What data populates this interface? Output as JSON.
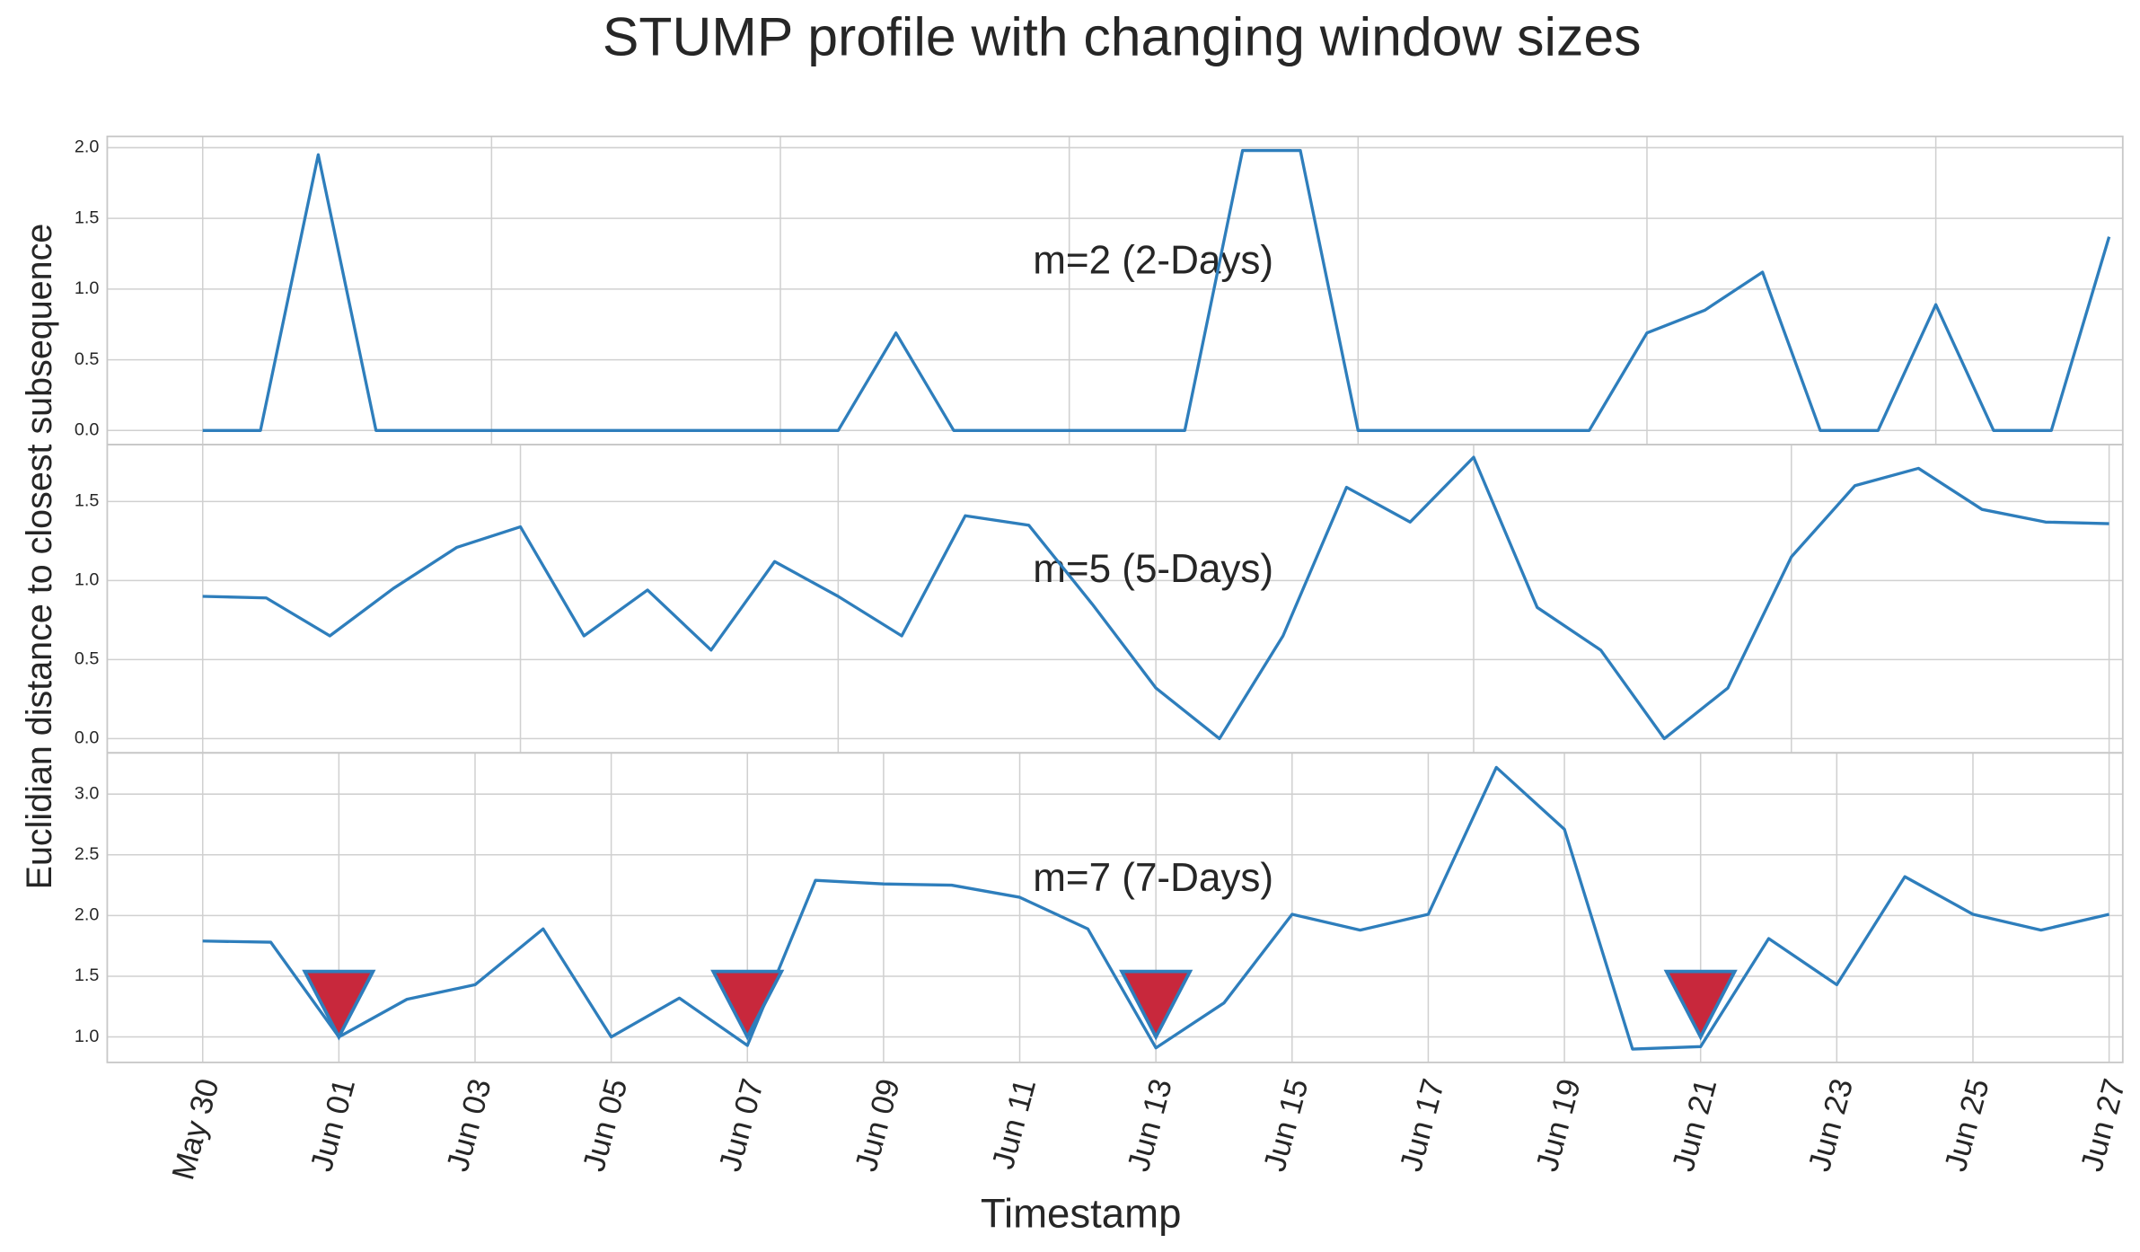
{
  "title": "STUMP profile with changing window sizes",
  "y_label": "Euclidian distance to closest subsequence",
  "x_label": "Timestamp",
  "chart_data": [
    {
      "type": "line",
      "annotation": "m=2 (2-Days)",
      "xlim": [
        0,
        33
      ],
      "xticks": [
        0,
        5,
        10,
        15,
        20,
        25,
        30
      ],
      "ylim": [
        -0.1,
        2.08
      ],
      "yticks": [
        {
          "value": 0,
          "label": "0.0"
        },
        0.5,
        {
          "value": 1,
          "label": "1.0"
        },
        1.5,
        {
          "value": 2,
          "label": "2.0"
        }
      ],
      "grid": true,
      "series": [
        {
          "color": "#2e7ebc",
          "values": [
            0,
            0,
            1.95,
            0,
            0,
            0,
            0,
            0,
            0,
            0,
            0,
            0,
            0.69,
            0,
            0,
            0,
            0,
            0,
            1.98,
            1.98,
            0,
            0,
            0,
            0,
            0,
            0.69,
            0.85,
            1.12,
            0,
            0,
            0.89,
            0,
            0,
            1.37
          ]
        }
      ]
    },
    {
      "type": "line",
      "annotation": "m=5 (5-Days)",
      "xlim": [
        0,
        30
      ],
      "xticks": [
        0,
        5,
        10,
        15,
        20,
        25,
        30
      ],
      "ylim": [
        -0.09,
        1.86
      ],
      "yticks": [
        {
          "value": 0,
          "label": "0.0"
        },
        0.5,
        {
          "value": 1,
          "label": "1.0"
        },
        1.5
      ],
      "grid": true,
      "series": [
        {
          "color": "#2e7ebc",
          "values": [
            0.9,
            0.89,
            0.65,
            0.95,
            1.21,
            1.34,
            0.65,
            0.94,
            0.56,
            1.12,
            0.9,
            0.65,
            1.41,
            1.35,
            0.85,
            0.32,
            0,
            0.65,
            1.59,
            1.37,
            1.78,
            0.83,
            0.56,
            0,
            0.32,
            1.15,
            1.6,
            1.71,
            1.45,
            1.37,
            1.36
          ]
        }
      ]
    },
    {
      "type": "line",
      "annotation": "m=7 (7-Days)",
      "categories": [
        "May 30",
        null,
        "Jun 01",
        null,
        "Jun 03",
        null,
        "Jun 05",
        null,
        "Jun 07",
        null,
        "Jun 09",
        null,
        "Jun 11",
        null,
        "Jun 13",
        null,
        "Jun 15",
        null,
        "Jun 17",
        null,
        "Jun 19",
        null,
        "Jun 21",
        null,
        "Jun 23",
        null,
        "Jun 25",
        null,
        "Jun 27"
      ],
      "ylim": [
        0.79,
        3.34
      ],
      "yticks": [
        {
          "value": 1,
          "label": "1.0"
        },
        1.5,
        {
          "value": 2,
          "label": "2.0"
        },
        2.5,
        {
          "value": 3,
          "label": "3.0"
        }
      ],
      "grid": true,
      "series": [
        {
          "color": "#2e7ebc",
          "values": [
            1.79,
            1.78,
            1.0,
            1.31,
            1.43,
            1.89,
            1.0,
            1.32,
            0.93,
            2.29,
            2.26,
            2.25,
            2.15,
            1.89,
            0.91,
            1.28,
            2.01,
            1.88,
            2.01,
            3.22,
            2.71,
            0.9,
            0.92,
            1.81,
            1.43,
            2.32,
            2.01,
            1.88,
            2.01
          ]
        },
        {
          "marker": "triangle-down",
          "color": "#c8283c",
          "edgecolor": "#2e7ebc",
          "values": [
            null,
            null,
            1.27,
            null,
            null,
            null,
            null,
            null,
            1.27,
            null,
            null,
            null,
            null,
            null,
            1.27,
            null,
            null,
            null,
            null,
            null,
            null,
            null,
            1.27,
            null,
            null,
            null,
            null,
            null,
            null
          ]
        }
      ]
    }
  ]
}
